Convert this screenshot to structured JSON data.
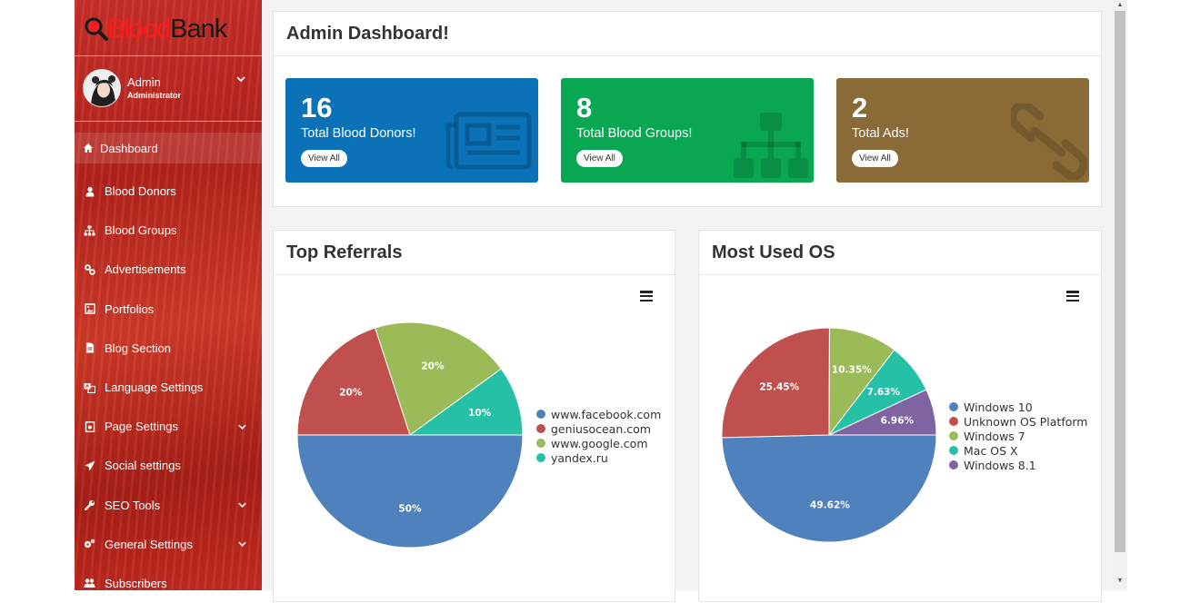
{
  "brand": {
    "part1": "Blood",
    "part2": "Bank"
  },
  "user": {
    "name": "Admin",
    "role": "Administrator"
  },
  "sidebar": {
    "items": [
      {
        "label": "Dashboard",
        "icon": "home-icon",
        "active": true,
        "caret": false
      },
      {
        "label": "Blood Donors",
        "icon": "user-icon",
        "caret": false
      },
      {
        "label": "Blood Groups",
        "icon": "sitemap-icon",
        "caret": false
      },
      {
        "label": "Advertisements",
        "icon": "link-icon",
        "caret": false
      },
      {
        "label": "Portfolios",
        "icon": "image-icon",
        "caret": false
      },
      {
        "label": "Blog Section",
        "icon": "file-icon",
        "caret": false
      },
      {
        "label": "Language Settings",
        "icon": "language-icon",
        "caret": false
      },
      {
        "label": "Page Settings",
        "icon": "page-icon",
        "caret": true
      },
      {
        "label": "Social settings",
        "icon": "paper-plane-icon",
        "caret": false
      },
      {
        "label": "SEO Tools",
        "icon": "wrench-icon",
        "caret": true
      },
      {
        "label": "General Settings",
        "icon": "cogs-icon",
        "caret": true
      },
      {
        "label": "Subscribers",
        "icon": "users-icon",
        "caret": false
      }
    ]
  },
  "dashboard": {
    "title": "Admin Dashboard!",
    "stats": [
      {
        "value": "16",
        "label": "Total Blood Donors!",
        "button": "View All",
        "color": "#0b72b8",
        "icon": "newspaper-icon"
      },
      {
        "value": "8",
        "label": "Total Blood Groups!",
        "button": "View All",
        "color": "#0aa752",
        "icon": "sitemap-icon"
      },
      {
        "value": "2",
        "label": "Total Ads!",
        "button": "View All",
        "color": "#8a6a37",
        "icon": "chain-link-icon"
      }
    ]
  },
  "referrals": {
    "title": "Top Referrals",
    "menu_icon": "hamburger-menu-icon"
  },
  "os": {
    "title": "Most Used OS",
    "menu_icon": "hamburger-menu-icon"
  },
  "chart_data": [
    {
      "type": "pie",
      "title": "Top Referrals",
      "categories": [
        "www.facebook.com",
        "geniusocean.com",
        "www.google.com",
        "yandex.ru"
      ],
      "values": [
        50,
        20,
        20,
        10
      ],
      "labels": [
        "50%",
        "20%",
        "20%",
        "10%"
      ],
      "colors": [
        "#4f81bd",
        "#c0504d",
        "#9bbb59",
        "#26c0a6"
      ],
      "legend": "right"
    },
    {
      "type": "pie",
      "title": "Most Used OS",
      "categories": [
        "Windows 10",
        "Unknown OS Platform",
        "Windows 7",
        "Mac OS X",
        "Windows 8.1"
      ],
      "values": [
        49.62,
        25.45,
        10.35,
        7.63,
        6.96
      ],
      "labels": [
        "49.62%",
        "25.45%",
        "10.35%",
        "7.63%",
        "6.96%"
      ],
      "colors": [
        "#4f81bd",
        "#c0504d",
        "#9bbb59",
        "#26c0a6",
        "#8064a2"
      ],
      "legend": "right"
    }
  ]
}
